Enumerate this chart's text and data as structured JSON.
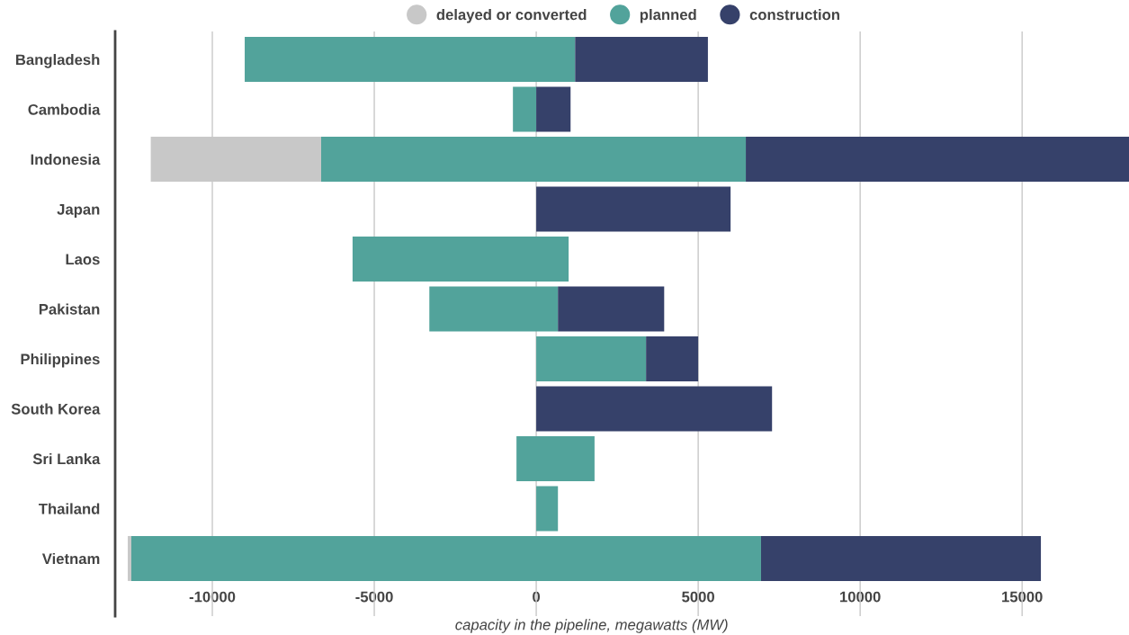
{
  "chart_data": {
    "type": "bar",
    "orientation": "horizontal",
    "xlabel": "capacity in the pipeline, megawatts (MW)",
    "categories": [
      "Bangladesh",
      "Cambodia",
      "Indonesia",
      "Japan",
      "Laos",
      "Pakistan",
      "Philippines",
      "South Korea",
      "Sri Lanka",
      "Thailand",
      "Vietnam"
    ],
    "series": [
      {
        "name": "delayed or converted",
        "color": "#c8c8c8",
        "base": [
          null,
          null,
          -11900,
          null,
          null,
          null,
          null,
          null,
          null,
          null,
          -12610
        ],
        "values": [
          null,
          null,
          5260,
          null,
          null,
          null,
          null,
          null,
          null,
          null,
          110
        ]
      },
      {
        "name": "planned",
        "color": "#52a39b",
        "base": [
          -9000,
          -720,
          -6640,
          null,
          -5670,
          -3300,
          0,
          null,
          -610,
          0,
          -12500
        ],
        "values": [
          10200,
          720,
          13110,
          null,
          6670,
          3970,
          3390,
          null,
          2410,
          670,
          19440
        ]
      },
      {
        "name": "construction",
        "color": "#36416a",
        "base": [
          1200,
          0,
          6470,
          0,
          null,
          670,
          3390,
          0,
          null,
          null,
          6940
        ],
        "values": [
          4100,
          1060,
          11830,
          6000,
          null,
          3280,
          1610,
          7280,
          null,
          null,
          8640
        ]
      }
    ],
    "xlim": [
      -13000,
      18300
    ],
    "xticks": [
      -10000,
      -5000,
      0,
      5000,
      10000,
      15000
    ],
    "grid": "x",
    "legend": "top",
    "marker": "circle"
  }
}
